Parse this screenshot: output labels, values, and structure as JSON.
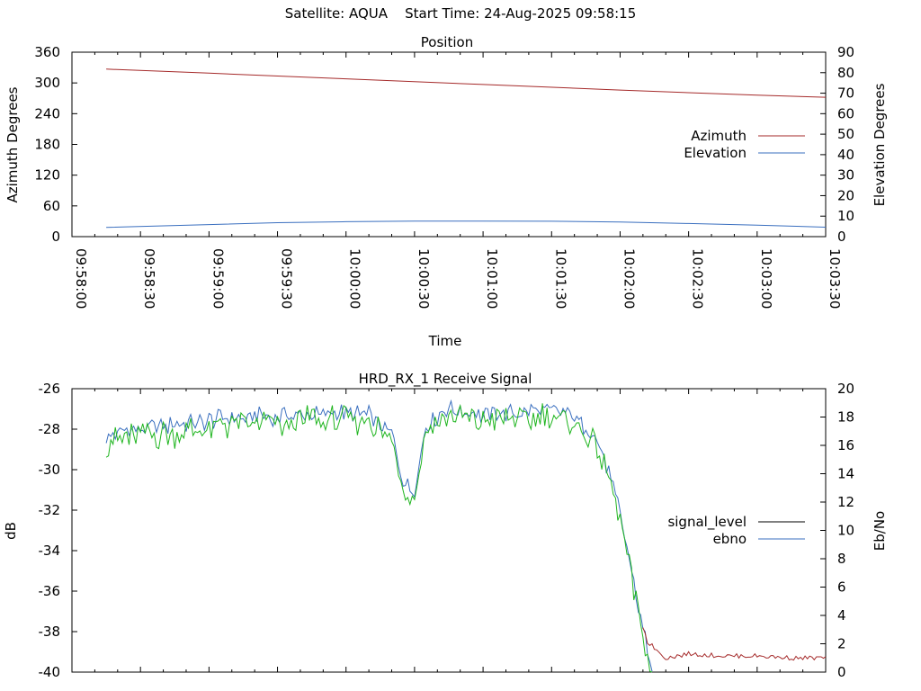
{
  "page": {
    "title": "Satellite: AQUA    Start Time: 24-Aug-2025 09:58:15",
    "colors": {
      "azimuth": "#a52a2a",
      "elevation": "#3a6fbf",
      "signal_level": "#000000",
      "ebno": "#3a6fbf",
      "signal_tail": "#a52a2a",
      "green_trace": "#1fb51f"
    }
  },
  "chart_data": [
    {
      "type": "line",
      "title": "Position",
      "xlabel": "Time",
      "ylabel": "Azimuth Degrees",
      "y2label": "Elevation Degrees",
      "xlim": [
        "09:58:00",
        "10:03:30"
      ],
      "ylim": [
        0,
        360
      ],
      "y2lim": [
        0,
        90
      ],
      "x_ticks": [
        "09:58:00",
        "09:58:30",
        "09:59:00",
        "09:59:30",
        "10:00:00",
        "10:00:30",
        "10:01:00",
        "10:01:30",
        "10:02:00",
        "10:02:30",
        "10:03:00",
        "10:03:30"
      ],
      "y_ticks": [
        "0",
        "60",
        "120",
        "180",
        "240",
        "300",
        "360"
      ],
      "y2_ticks": [
        "0",
        "10",
        "20",
        "30",
        "40",
        "50",
        "60",
        "70",
        "80",
        "90"
      ],
      "legend": "right",
      "series": [
        {
          "name": "Azimuth",
          "axis": "y",
          "x": [
            "09:58:15",
            "09:59:00",
            "10:00:00",
            "10:01:00",
            "10:02:00",
            "10:03:00",
            "10:03:30"
          ],
          "values": [
            327,
            319,
            308,
            297,
            286,
            276,
            272
          ]
        },
        {
          "name": "Elevation",
          "axis": "y2",
          "x": [
            "09:58:15",
            "09:59:00",
            "09:59:30",
            "10:00:00",
            "10:00:30",
            "10:01:00",
            "10:01:30",
            "10:02:00",
            "10:02:30",
            "10:03:00",
            "10:03:30"
          ],
          "values": [
            4.5,
            5.9,
            6.8,
            7.3,
            7.6,
            7.6,
            7.5,
            7.1,
            6.4,
            5.6,
            4.6
          ]
        }
      ]
    },
    {
      "type": "line",
      "title": "HRD_RX_1 Receive Signal",
      "ylabel": "dB",
      "y2label": "Eb/No",
      "xlim": [
        "09:58:00",
        "10:03:30"
      ],
      "ylim": [
        -40,
        -26
      ],
      "y2lim": [
        0,
        20
      ],
      "y_ticks": [
        "-40",
        "-38",
        "-36",
        "-34",
        "-32",
        "-30",
        "-28",
        "-26"
      ],
      "y2_ticks": [
        "0",
        "2",
        "4",
        "6",
        "8",
        "10",
        "12",
        "14",
        "16",
        "18",
        "20"
      ],
      "legend": "right",
      "series": [
        {
          "name": "signal_level",
          "axis": "y",
          "x": [
            "09:58:15",
            "09:58:25",
            "09:58:35",
            "09:58:45",
            "09:58:55",
            "09:59:05",
            "09:59:15",
            "09:59:30",
            "09:59:45",
            "10:00:00",
            "10:00:10",
            "10:00:20",
            "10:00:25",
            "10:00:30",
            "10:00:35",
            "10:00:45",
            "10:01:00",
            "10:01:15",
            "10:01:30",
            "10:01:40",
            "10:01:50",
            "10:01:55",
            "10:02:00",
            "10:02:04",
            "10:02:08",
            "10:02:12",
            "10:02:20",
            "10:02:30",
            "10:02:45",
            "10:03:00",
            "10:03:15",
            "10:03:30"
          ],
          "values": [
            -28.8,
            -28.6,
            -28.4,
            -28.2,
            -28.0,
            -27.8,
            -27.6,
            -27.5,
            -27.4,
            -27.3,
            -27.4,
            -28.5,
            -32.0,
            -32.6,
            -28.0,
            -27.1,
            -27.5,
            -27.3,
            -27.0,
            -27.5,
            -28.6,
            -30.0,
            -32.5,
            -34.8,
            -37.0,
            -38.5,
            -39.3,
            -39.1,
            -39.2,
            -39.2,
            -39.3,
            -39.3
          ]
        },
        {
          "name": "ebno",
          "axis": "y2",
          "x": [
            "09:58:15",
            "09:58:25",
            "09:58:35",
            "09:58:45",
            "09:58:55",
            "09:59:05",
            "09:59:15",
            "09:59:30",
            "09:59:45",
            "10:00:00",
            "10:00:10",
            "10:00:20",
            "10:00:25",
            "10:00:30",
            "10:00:35",
            "10:00:45",
            "10:01:00",
            "10:01:15",
            "10:01:30",
            "10:01:40",
            "10:01:50",
            "10:01:55",
            "10:02:00",
            "10:02:04",
            "10:02:08",
            "10:02:12",
            "10:02:14"
          ],
          "values": [
            16.7,
            17.0,
            17.2,
            17.4,
            17.6,
            17.9,
            18.0,
            18.0,
            18.2,
            18.3,
            18.2,
            16.8,
            13.5,
            12.8,
            17.5,
            18.5,
            18.2,
            18.3,
            18.6,
            18.0,
            16.4,
            14.0,
            11.3,
            8.0,
            4.6,
            1.6,
            0.0
          ]
        }
      ]
    }
  ]
}
